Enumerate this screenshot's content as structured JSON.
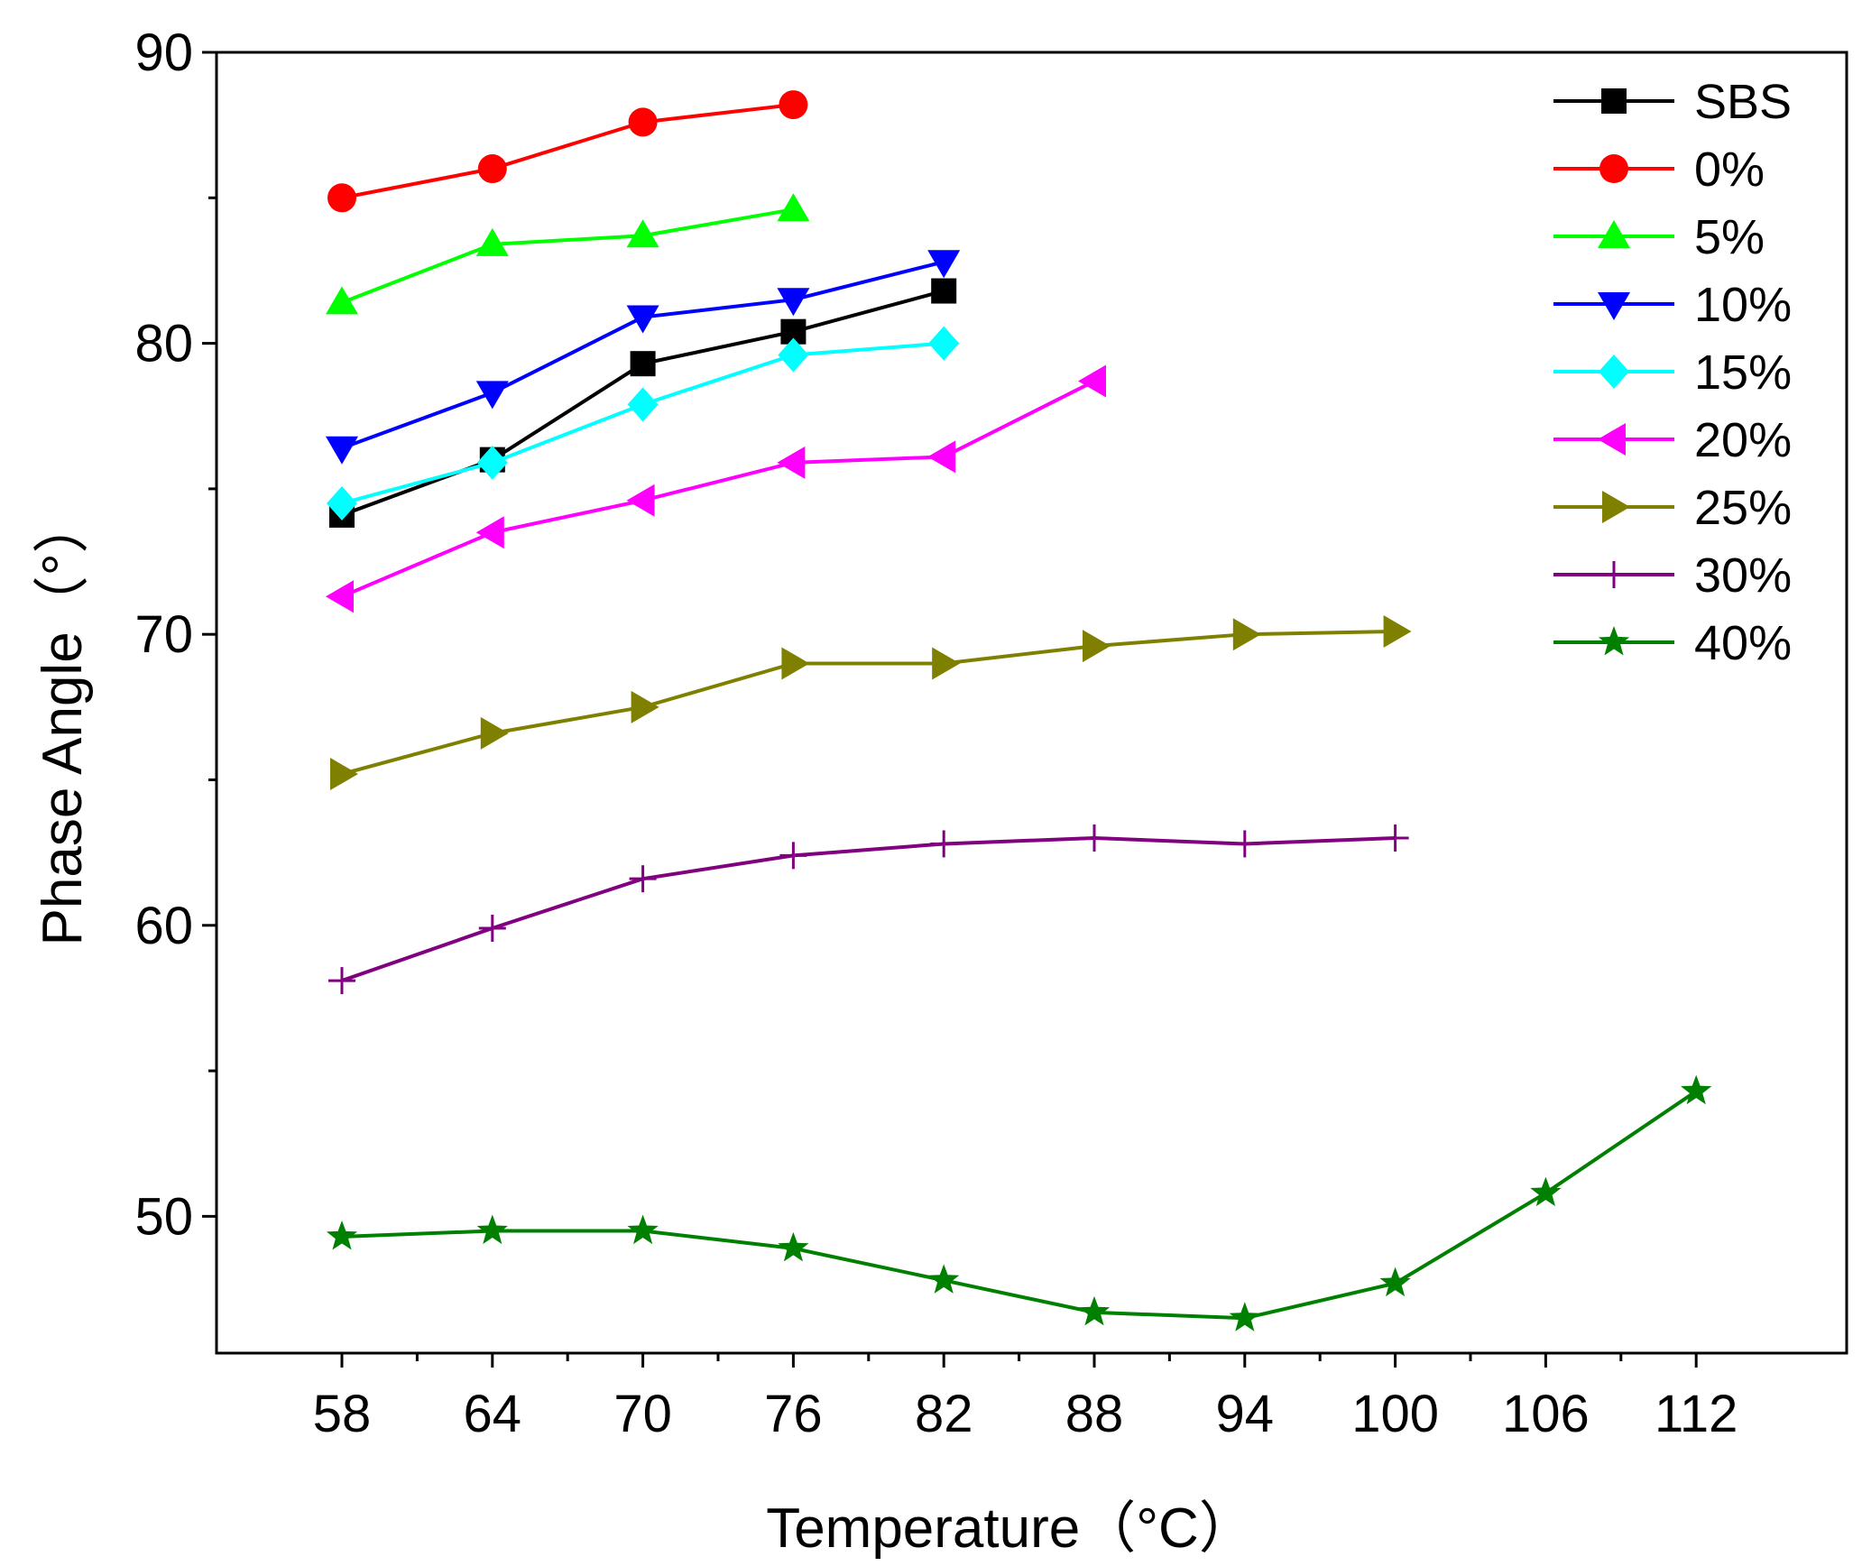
{
  "chart_data": {
    "type": "line",
    "title": "",
    "xlabel": "Temperature（°C）",
    "ylabel": "Phase Angle（°）",
    "xlim": [
      53,
      118
    ],
    "ylim": [
      45.3,
      90
    ],
    "xticks": [
      58,
      64,
      70,
      76,
      82,
      88,
      94,
      100,
      106,
      112
    ],
    "yticks": [
      50,
      60,
      70,
      80,
      90
    ],
    "grid": false,
    "legend_position": "top-right",
    "series": [
      {
        "name": "SBS",
        "color": "#000000",
        "marker": "square",
        "x": [
          58,
          64,
          70,
          76,
          82
        ],
        "y": [
          74.1,
          76.0,
          79.3,
          80.4,
          81.8
        ]
      },
      {
        "name": "0%",
        "color": "#ff0000",
        "marker": "circle",
        "x": [
          58,
          64,
          70,
          76
        ],
        "y": [
          85.0,
          86.0,
          87.6,
          88.2
        ]
      },
      {
        "name": "5%",
        "color": "#00ff00",
        "marker": "triangle-up",
        "x": [
          58,
          64,
          70,
          76
        ],
        "y": [
          81.4,
          83.4,
          83.7,
          84.6
        ]
      },
      {
        "name": "10%",
        "color": "#0000ff",
        "marker": "triangle-down",
        "x": [
          58,
          64,
          70,
          76,
          82
        ],
        "y": [
          76.4,
          78.3,
          80.9,
          81.5,
          82.8
        ]
      },
      {
        "name": "15%",
        "color": "#00ffff",
        "marker": "diamond",
        "x": [
          58,
          64,
          70,
          76,
          82
        ],
        "y": [
          74.5,
          75.9,
          77.9,
          79.6,
          80.0
        ]
      },
      {
        "name": "20%",
        "color": "#ff00ff",
        "marker": "triangle-left",
        "x": [
          58,
          64,
          70,
          76,
          82,
          88
        ],
        "y": [
          71.3,
          73.5,
          74.6,
          75.9,
          76.1,
          78.7
        ]
      },
      {
        "name": "25%",
        "color": "#808000",
        "marker": "triangle-right",
        "x": [
          58,
          64,
          70,
          76,
          82,
          88,
          94,
          100
        ],
        "y": [
          65.2,
          66.6,
          67.5,
          69.0,
          69.0,
          69.6,
          70.0,
          70.1
        ]
      },
      {
        "name": "30%",
        "color": "#800080",
        "marker": "plus",
        "x": [
          58,
          64,
          70,
          76,
          82,
          88,
          94,
          100
        ],
        "y": [
          58.1,
          59.9,
          61.6,
          62.4,
          62.8,
          63.0,
          62.8,
          63.0
        ]
      },
      {
        "name": "40%",
        "color": "#008000",
        "marker": "star",
        "x": [
          58,
          64,
          70,
          76,
          82,
          88,
          94,
          100,
          106,
          112
        ],
        "y": [
          49.3,
          49.5,
          49.5,
          48.9,
          47.8,
          46.7,
          46.5,
          47.7,
          50.8,
          54.3
        ]
      }
    ]
  }
}
